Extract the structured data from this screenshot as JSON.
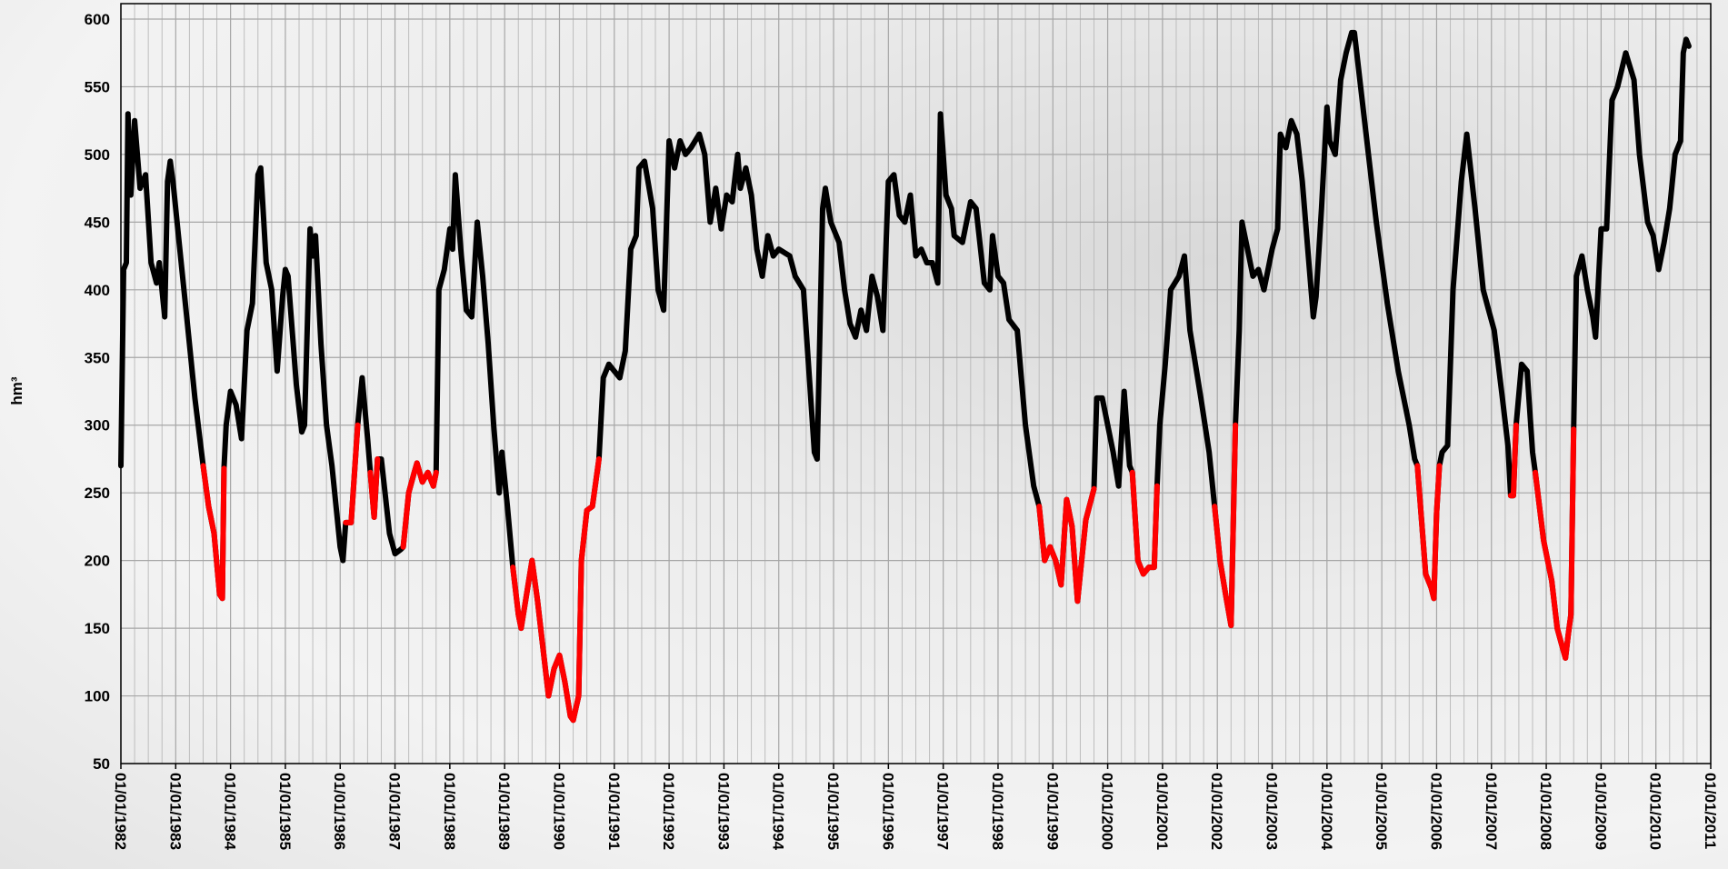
{
  "chart_data": {
    "type": "line",
    "y_label": "hm³",
    "xlim": [
      1982,
      2011
    ],
    "ylim": [
      50,
      600
    ],
    "yticks": [
      50,
      100,
      150,
      200,
      250,
      300,
      350,
      400,
      450,
      500,
      550,
      600
    ],
    "xticks": [
      {
        "value": 1982,
        "label": "01/01/1982"
      },
      {
        "value": 1983,
        "label": "01/01/1983"
      },
      {
        "value": 1984,
        "label": "01/01/1984"
      },
      {
        "value": 1985,
        "label": "01/01/1985"
      },
      {
        "value": 1986,
        "label": "01/01/1986"
      },
      {
        "value": 1987,
        "label": "01/01/1987"
      },
      {
        "value": 1988,
        "label": "01/01/1988"
      },
      {
        "value": 1989,
        "label": "01/01/1989"
      },
      {
        "value": 1990,
        "label": "01/01/1990"
      },
      {
        "value": 1991,
        "label": "01/01/1991"
      },
      {
        "value": 1992,
        "label": "01/01/1992"
      },
      {
        "value": 1993,
        "label": "01/01/1993"
      },
      {
        "value": 1994,
        "label": "01/01/1994"
      },
      {
        "value": 1995,
        "label": "01/01/1995"
      },
      {
        "value": 1996,
        "label": "01/01/1996"
      },
      {
        "value": 1997,
        "label": "01/01/1997"
      },
      {
        "value": 1998,
        "label": "01/01/1998"
      },
      {
        "value": 1999,
        "label": "01/01/1999"
      },
      {
        "value": 2000,
        "label": "01/01/2000"
      },
      {
        "value": 2001,
        "label": "01/01/2001"
      },
      {
        "value": 2002,
        "label": "01/01/2002"
      },
      {
        "value": 2003,
        "label": "01/01/2003"
      },
      {
        "value": 2004,
        "label": "01/01/2004"
      },
      {
        "value": 2005,
        "label": "01/01/2005"
      },
      {
        "value": 2006,
        "label": "01/01/2006"
      },
      {
        "value": 2007,
        "label": "01/01/2007"
      },
      {
        "value": 2008,
        "label": "01/01/2008"
      },
      {
        "value": 2009,
        "label": "01/01/2009"
      },
      {
        "value": 2010,
        "label": "01/01/2010"
      },
      {
        "value": 2011,
        "label": "01/01/2011"
      }
    ],
    "grid": true,
    "series": [
      {
        "color": "#000000",
        "x": [
          1982.0,
          1982.05,
          1982.1,
          1982.13,
          1982.18,
          1982.25,
          1982.35,
          1982.45,
          1982.55,
          1982.65,
          1982.7,
          1982.8,
          1982.85,
          1982.9,
          1982.95,
          1983.05,
          1983.2,
          1983.35,
          1983.5,
          1983.6,
          1983.7,
          1983.8,
          1983.85,
          1983.88,
          1983.92,
          1984.0,
          1984.1,
          1984.2,
          1984.3,
          1984.4,
          1984.5,
          1984.55,
          1984.65,
          1984.75,
          1984.85,
          1984.95,
          1985.0,
          1985.05,
          1985.2,
          1985.3,
          1985.35,
          1985.45,
          1985.5,
          1985.55,
          1985.65,
          1985.75,
          1985.85,
          1986.0,
          1986.05,
          1986.1,
          1986.2,
          1986.32,
          1986.4,
          1986.5,
          1986.55,
          1986.62,
          1986.68,
          1986.75,
          1986.9,
          1987.0,
          1987.1,
          1987.15,
          1987.25,
          1987.35,
          1987.4,
          1987.5,
          1987.6,
          1987.7,
          1987.75,
          1987.8,
          1987.9,
          1988.0,
          1988.05,
          1988.1,
          1988.2,
          1988.3,
          1988.4,
          1988.5,
          1988.6,
          1988.7,
          1988.8,
          1988.9,
          1988.95,
          1989.05,
          1989.15,
          1989.25,
          1989.3,
          1989.4,
          1989.5,
          1989.6,
          1989.7,
          1989.8,
          1989.9,
          1990.0,
          1990.1,
          1990.2,
          1990.25,
          1990.35,
          1990.4,
          1990.5,
          1990.6,
          1990.72,
          1990.8,
          1990.9,
          1991.0,
          1991.1,
          1991.2,
          1991.3,
          1991.4,
          1991.45,
          1991.55,
          1991.7,
          1991.8,
          1991.9,
          1992.0,
          1992.1,
          1992.2,
          1992.3,
          1992.4,
          1992.55,
          1992.65,
          1992.75,
          1992.85,
          1992.95,
          1993.05,
          1993.15,
          1993.25,
          1993.3,
          1993.4,
          1993.5,
          1993.6,
          1993.7,
          1993.8,
          1993.9,
          1994.0,
          1994.2,
          1994.3,
          1994.45,
          1994.55,
          1994.65,
          1994.7,
          1994.8,
          1994.85,
          1994.95,
          1995.1,
          1995.2,
          1995.3,
          1995.4,
          1995.5,
          1995.6,
          1995.7,
          1995.8,
          1995.9,
          1996.0,
          1996.1,
          1996.2,
          1996.3,
          1996.4,
          1996.5,
          1996.6,
          1996.7,
          1996.8,
          1996.9,
          1996.95,
          1997.05,
          1997.15,
          1997.2,
          1997.35,
          1997.5,
          1997.6,
          1997.75,
          1997.85,
          1997.9,
          1998.0,
          1998.1,
          1998.2,
          1998.35,
          1998.5,
          1998.65,
          1998.75,
          1998.85,
          1998.95,
          1999.05,
          1999.15,
          1999.25,
          1999.35,
          1999.45,
          1999.5,
          1999.6,
          1999.75,
          1999.8,
          1999.9,
          2000.0,
          2000.1,
          2000.2,
          2000.3,
          2000.4,
          2000.45,
          2000.55,
          2000.65,
          2000.75,
          2000.85,
          2000.9,
          2000.95,
          2001.05,
          2001.15,
          2001.3,
          2001.4,
          2001.5,
          2001.7,
          2001.85,
          2001.95,
          2002.05,
          2002.15,
          2002.25,
          2002.33,
          2002.4,
          2002.45,
          2002.55,
          2002.65,
          2002.75,
          2002.85,
          2003.0,
          2003.1,
          2003.15,
          2003.25,
          2003.35,
          2003.45,
          2003.55,
          2003.65,
          2003.75,
          2003.8,
          2003.9,
          2004.0,
          2004.05,
          2004.15,
          2004.25,
          2004.35,
          2004.45,
          2004.5,
          2004.7,
          2004.9,
          2005.1,
          2005.3,
          2005.5,
          2005.6,
          2005.65,
          2005.8,
          2005.9,
          2005.95,
          2006.0,
          2006.05,
          2006.1,
          2006.2,
          2006.3,
          2006.45,
          2006.55,
          2006.7,
          2006.85,
          2006.95,
          2007.05,
          2007.2,
          2007.3,
          2007.35,
          2007.4,
          2007.45,
          2007.55,
          2007.65,
          2007.75,
          2007.8,
          2007.95,
          2008.1,
          2008.2,
          2008.3,
          2008.35,
          2008.4,
          2008.45,
          2008.5,
          2008.55,
          2008.65,
          2008.75,
          2008.85,
          2008.9,
          2009.0,
          2009.1,
          2009.2,
          2009.3,
          2009.45,
          2009.6,
          2009.7,
          2009.85,
          2009.95,
          2010.05,
          2010.15,
          2010.25,
          2010.35,
          2010.45,
          2010.5,
          2010.55,
          2010.6
        ],
        "values": [
          270,
          415,
          420,
          530,
          470,
          525,
          475,
          485,
          420,
          405,
          420,
          380,
          480,
          495,
          480,
          440,
          380,
          320,
          270,
          240,
          220,
          175,
          172,
          268,
          300,
          325,
          315,
          290,
          370,
          390,
          485,
          490,
          420,
          400,
          340,
          395,
          415,
          410,
          330,
          295,
          300,
          445,
          425,
          440,
          360,
          300,
          270,
          210,
          200,
          228,
          228,
          300,
          335,
          290,
          265,
          232,
          275,
          275,
          220,
          205,
          208,
          210,
          250,
          265,
          272,
          258,
          265,
          255,
          265,
          400,
          415,
          445,
          430,
          485,
          430,
          385,
          380,
          450,
          410,
          360,
          300,
          250,
          280,
          240,
          195,
          160,
          150,
          175,
          200,
          170,
          135,
          100,
          120,
          130,
          110,
          85,
          82,
          100,
          200,
          237,
          240,
          275,
          335,
          345,
          340,
          335,
          355,
          430,
          440,
          490,
          495,
          460,
          400,
          385,
          510,
          490,
          510,
          500,
          505,
          515,
          500,
          450,
          475,
          445,
          470,
          465,
          500,
          475,
          490,
          470,
          430,
          410,
          440,
          425,
          430,
          425,
          410,
          400,
          340,
          280,
          275,
          460,
          475,
          450,
          435,
          400,
          375,
          365,
          385,
          370,
          410,
          395,
          370,
          480,
          485,
          455,
          450,
          470,
          425,
          430,
          420,
          420,
          405,
          530,
          470,
          460,
          440,
          435,
          465,
          460,
          405,
          400,
          440,
          410,
          405,
          378,
          370,
          300,
          255,
          240,
          200,
          210,
          200,
          182,
          245,
          225,
          170,
          190,
          230,
          253,
          320,
          320,
          300,
          280,
          255,
          325,
          270,
          265,
          200,
          190,
          195,
          195,
          255,
          300,
          345,
          400,
          410,
          425,
          370,
          320,
          280,
          240,
          200,
          175,
          152,
          300,
          370,
          450,
          430,
          410,
          415,
          400,
          430,
          445,
          515,
          505,
          525,
          515,
          480,
          430,
          380,
          395,
          460,
          535,
          510,
          500,
          555,
          575,
          590,
          590,
          520,
          450,
          390,
          340,
          300,
          275,
          270,
          190,
          180,
          172,
          235,
          270,
          280,
          285,
          400,
          480,
          515,
          460,
          400,
          385,
          370,
          320,
          285,
          248,
          248,
          300,
          345,
          340,
          280,
          265,
          215,
          185,
          150,
          135,
          128,
          145,
          160,
          297,
          410,
          425,
          400,
          380,
          365,
          445,
          445,
          540,
          550,
          575,
          555,
          500,
          450,
          440,
          415,
          435,
          460,
          500,
          510,
          575,
          585,
          580
        ]
      },
      {
        "color": "#ff0000",
        "x": [
          1983.5,
          1983.6,
          1983.7,
          1983.8,
          1983.85,
          1983.88,
          null,
          1986.1,
          1986.2,
          1986.32,
          null,
          1986.55,
          1986.62,
          1986.68,
          null,
          1987.15,
          1987.25,
          1987.35,
          1987.4,
          1987.5,
          1987.6,
          1987.7,
          1987.75,
          null,
          1989.15,
          1989.25,
          1989.3,
          1989.4,
          1989.5,
          1989.6,
          1989.7,
          1989.8,
          1989.9,
          1990.0,
          1990.1,
          1990.2,
          1990.25,
          1990.35,
          1990.4,
          1990.5,
          1990.6,
          1990.72,
          null,
          1998.75,
          1998.85,
          1998.95,
          1999.05,
          1999.15,
          1999.25,
          1999.35,
          1999.45,
          1999.5,
          1999.6,
          1999.75,
          null,
          2000.45,
          2000.55,
          2000.65,
          2000.75,
          2000.85,
          2000.9,
          null,
          2001.95,
          2002.05,
          2002.15,
          2002.25,
          2002.33,
          null,
          2005.65,
          2005.8,
          2005.9,
          2005.95,
          2006.0,
          2006.05,
          null,
          2007.35,
          2007.4,
          2007.45,
          null,
          2007.8,
          2007.95,
          2008.1,
          2008.2,
          2008.3,
          2008.35,
          2008.4,
          2008.45,
          2008.5
        ],
        "values": [
          270,
          240,
          220,
          175,
          172,
          268,
          null,
          228,
          228,
          300,
          null,
          265,
          232,
          275,
          null,
          210,
          250,
          265,
          272,
          258,
          265,
          255,
          265,
          null,
          195,
          160,
          150,
          175,
          200,
          170,
          135,
          100,
          120,
          130,
          110,
          85,
          82,
          100,
          200,
          237,
          240,
          275,
          null,
          240,
          200,
          210,
          200,
          182,
          245,
          225,
          170,
          190,
          230,
          253,
          null,
          265,
          200,
          190,
          195,
          195,
          255,
          null,
          240,
          200,
          175,
          152,
          300,
          null,
          270,
          190,
          180,
          172,
          235,
          270,
          null,
          248,
          248,
          300,
          null,
          265,
          215,
          185,
          150,
          135,
          128,
          145,
          160,
          297
        ]
      }
    ]
  }
}
